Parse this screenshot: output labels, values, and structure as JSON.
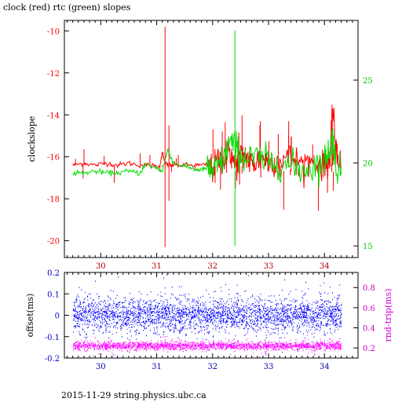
{
  "title": "clock (red) rtc (green) slopes",
  "footer": "2015-11-29 string.physics.ubc.ca",
  "chart_data": [
    {
      "type": "line",
      "name": "slopes",
      "ylabel": "clockslope",
      "xlim": [
        29.35,
        34.6
      ],
      "ylim": [
        -20.8,
        -9.5
      ],
      "y2lim": [
        14.3,
        28.6
      ],
      "x_ticks": [
        30,
        31,
        32,
        33,
        34
      ],
      "y_ticks": [
        -10,
        -12,
        -14,
        -16,
        -18,
        -20
      ],
      "y2_ticks": [
        15,
        20,
        25
      ],
      "x_tick_color": "#b00000",
      "y_tick_color": "#ff0000",
      "y2_tick_color": "#00cc00",
      "series": [
        {
          "name": "clock",
          "color": "#ff0000",
          "axis": "left",
          "x": [
            29.5,
            29.7,
            29.9,
            30.1,
            30.3,
            30.5,
            30.7,
            30.9,
            31.05,
            31.1,
            31.15,
            31.2,
            31.3,
            31.5,
            31.7,
            31.9,
            32.0,
            32.1,
            32.2,
            32.3,
            32.4,
            32.5,
            32.6,
            32.7,
            32.8,
            32.9,
            33.0,
            33.2,
            33.4,
            33.6,
            33.8,
            34.0,
            34.1,
            34.15,
            34.2,
            34.3
          ],
          "y": [
            -16.4,
            -16.3,
            -16.4,
            -16.3,
            -16.4,
            -16.3,
            -16.4,
            -16.4,
            -16.5,
            -15.8,
            -16.3,
            -16.4,
            -16.4,
            -16.4,
            -16.4,
            -16.4,
            -16.6,
            -16.1,
            -16.2,
            -15.6,
            -16.5,
            -16.0,
            -15.9,
            -16.4,
            -16.2,
            -16.0,
            -16.3,
            -16.1,
            -16.0,
            -16.3,
            -16.2,
            -16.5,
            -16.0,
            -13.7,
            -15.5,
            -16.5
          ],
          "spikes": [
            {
              "x": 31.15,
              "y_from": -20.3,
              "y_to": -9.8
            },
            {
              "x": 31.22,
              "y_from": -18.1,
              "y_to": -14.5
            }
          ]
        },
        {
          "name": "rtc",
          "color": "#00dd00",
          "axis": "right",
          "x": [
            29.5,
            29.7,
            29.9,
            30.1,
            30.3,
            30.5,
            30.7,
            30.8,
            31.0,
            31.1,
            31.2,
            31.3,
            31.5,
            31.7,
            31.8,
            31.9,
            32.0,
            32.1,
            32.2,
            32.3,
            32.4,
            32.5,
            32.6,
            32.8,
            33.0,
            33.2,
            33.4,
            33.6,
            33.8,
            34.0,
            34.1,
            34.15,
            34.2,
            34.3
          ],
          "y": [
            19.4,
            19.4,
            19.5,
            19.4,
            19.4,
            19.5,
            19.4,
            19.9,
            19.7,
            19.5,
            20.8,
            20.0,
            19.8,
            19.6,
            19.6,
            19.7,
            19.5,
            19.8,
            20.2,
            21.3,
            21.0,
            20.5,
            20.2,
            20.3,
            20.0,
            20.1,
            19.8,
            19.6,
            19.8,
            20.1,
            20.9,
            21.6,
            19.9,
            19.3
          ],
          "spikes": [
            {
              "x": 32.4,
              "y_from": 15.0,
              "y_to": 28.0
            }
          ]
        }
      ]
    },
    {
      "type": "scatter",
      "name": "offsets",
      "ylabel": "offset(ms)",
      "y2label": "rnd-trip(ms)",
      "xlim": [
        29.35,
        34.6
      ],
      "ylim": [
        -0.2,
        0.2
      ],
      "y2lim": [
        0.1,
        0.95
      ],
      "x_ticks": [
        30,
        31,
        32,
        33,
        34
      ],
      "y_ticks": [
        0.2,
        0.1,
        0,
        -0.1,
        -0.2
      ],
      "y2_ticks": [
        0.2,
        0.4,
        0.6,
        0.8
      ],
      "x_tick_color": "#0000aa",
      "y_tick_color": "#0000cc",
      "y2_tick_color": "#cc00cc",
      "series": [
        {
          "name": "offset",
          "color": "#0000ff",
          "axis": "left",
          "x_range": [
            29.5,
            34.3
          ],
          "y_center": 0.0,
          "y_spread": 0.04
        },
        {
          "name": "rnd-trip",
          "color": "#ff00ff",
          "axis": "right",
          "x_range": [
            29.5,
            34.3
          ],
          "y_center": 0.22,
          "y_spread": 0.02
        }
      ]
    }
  ]
}
